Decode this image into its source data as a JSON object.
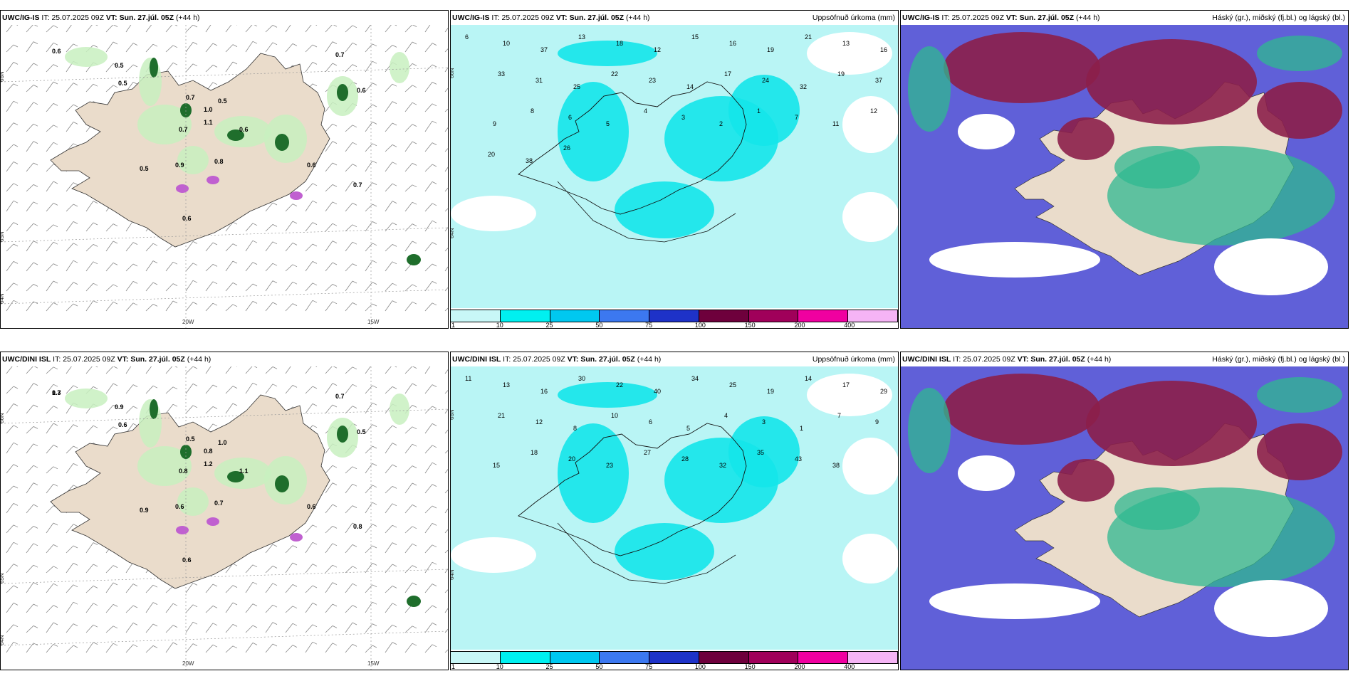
{
  "panels": [
    {
      "model": "UWC/IG-IS",
      "it_label": "IT:",
      "it_value": "25.07.2025 09Z",
      "vt_label": "VT:",
      "vt_value": "Sun. 27.júl. 05Z",
      "lead": "(+44 h)",
      "right_title": "",
      "type": "wind",
      "lat_labels": [
        "66N",
        "65N",
        "64N"
      ],
      "lon_labels": [
        "20W",
        "15W"
      ],
      "values": [
        "0.6",
        "0.5",
        "0.5",
        "1.0",
        "0.7",
        "0.5",
        "0.6",
        "0.8",
        "0.9",
        "0.7",
        "1.1",
        "0.5",
        "0.6",
        "0.7",
        "0.6",
        "0.7",
        "0.6"
      ]
    },
    {
      "model": "UWC/IG-IS",
      "it_label": "IT:",
      "it_value": "25.07.2025 09Z",
      "vt_label": "VT:",
      "vt_value": "Sun. 27.júl. 05Z",
      "lead": "(+44 h)",
      "right_title": "Uppsöfnuð úrkoma (mm)",
      "type": "precip",
      "lat_labels": [
        "66N",
        "64N"
      ],
      "lon_labels": [],
      "values": [
        "6",
        "10",
        "37",
        "13",
        "18",
        "12",
        "15",
        "16",
        "19",
        "21",
        "13",
        "16",
        "33",
        "31",
        "25",
        "22",
        "23",
        "14",
        "17",
        "24",
        "32",
        "19",
        "37",
        "9",
        "8",
        "6",
        "5",
        "4",
        "3",
        "2",
        "1",
        "7",
        "11",
        "12",
        "20",
        "38",
        "26"
      ]
    },
    {
      "model": "UWC/IG-IS",
      "it_label": "IT:",
      "it_value": "25.07.2025 09Z",
      "vt_label": "VT:",
      "vt_value": "Sun. 27.júl. 05Z",
      "lead": "(+44 h)",
      "right_title": "Háský (gr.), miðský (fj.bl.) og lágský (bl.)",
      "type": "cloud",
      "lat_labels": [],
      "lon_labels": [],
      "values": []
    },
    {
      "model": "UWC/DINI ISL",
      "it_label": "IT:",
      "it_value": "25.07.2025 09Z",
      "vt_label": "VT:",
      "vt_value": "Sun. 27.júl. 05Z",
      "lead": "(+44 h)",
      "right_title": "",
      "type": "wind",
      "lat_labels": [
        "66N",
        "65N",
        "64N"
      ],
      "lon_labels": [
        "20W",
        "15W"
      ],
      "values": [
        "0.7",
        "0.9",
        "0.6",
        "0.8",
        "0.5",
        "1.0",
        "1.1",
        "0.7",
        "0.6",
        "0.8",
        "1.2",
        "0.9",
        "0.6",
        "0.7",
        "0.5",
        "0.8",
        "0.6",
        "1.3"
      ]
    },
    {
      "model": "UWC/DINI ISL",
      "it_label": "IT:",
      "it_value": "25.07.2025 09Z",
      "vt_label": "VT:",
      "vt_value": "Sun. 27.júl. 05Z",
      "lead": "(+44 h)",
      "right_title": "Uppsöfnuð úrkoma (mm)",
      "type": "precip",
      "lat_labels": [
        "66N",
        "64N"
      ],
      "lon_labels": [],
      "values": [
        "11",
        "13",
        "16",
        "30",
        "22",
        "40",
        "34",
        "25",
        "19",
        "14",
        "17",
        "29",
        "21",
        "12",
        "8",
        "10",
        "6",
        "5",
        "4",
        "3",
        "1",
        "7",
        "9",
        "15",
        "18",
        "20",
        "23",
        "27",
        "28",
        "32",
        "35",
        "43",
        "38"
      ]
    },
    {
      "model": "UWC/DINI ISL",
      "it_label": "IT:",
      "it_value": "25.07.2025 09Z",
      "vt_label": "VT:",
      "vt_value": "Sun. 27.júl. 05Z",
      "lead": "(+44 h)",
      "right_title": "Háský (gr.), miðský (fj.bl.) og lágský (bl.)",
      "type": "cloud",
      "lat_labels": [],
      "lon_labels": [],
      "values": []
    }
  ],
  "precip_legend": {
    "labels": [
      "1",
      "10",
      "25",
      "50",
      "75",
      "100",
      "150",
      "200",
      "400"
    ],
    "colors": [
      "#c8f7f7",
      "#00f0f0",
      "#00c8f0",
      "#3c78f0",
      "#1e32c8",
      "#6e003c",
      "#a0005a",
      "#f000a0",
      "#f5b4f5"
    ]
  },
  "colors": {
    "land": "#eadccb",
    "sea_precip": "#b9f5f5",
    "precip_medium": "#14e6ea",
    "wind_light": "#c8f0c0",
    "wind_medium": "#80d080",
    "wind_dark": "#1f6e2c",
    "cloud_high": "#2fb890",
    "cloud_mid": "#8c1f4a",
    "cloud_low": "#6060d8"
  }
}
